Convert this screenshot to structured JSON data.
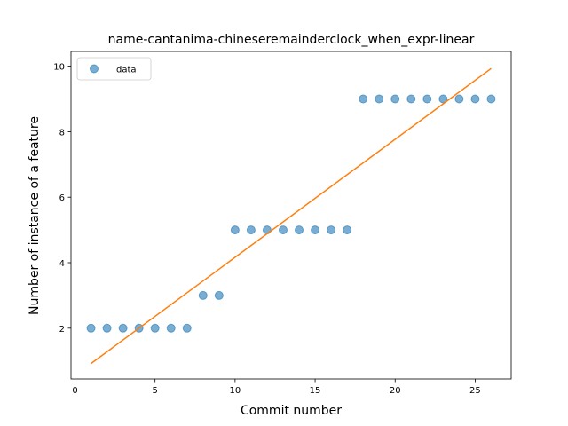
{
  "chart_data": {
    "type": "scatter",
    "title": "name-cantanima-chineseremainderclock_when_expr-linear",
    "xlabel": "Commit number",
    "ylabel": "Number of instance of a feature",
    "xlim": [
      -0.25,
      27.25
    ],
    "ylim": [
      0.45,
      10.45
    ],
    "xticks": [
      0,
      5,
      10,
      15,
      20,
      25
    ],
    "yticks": [
      2,
      4,
      6,
      8,
      10
    ],
    "grid": false,
    "legend": {
      "placement": "top-left",
      "entries": [
        "data"
      ]
    },
    "series": [
      {
        "name": "data",
        "kind": "scatter",
        "color": "#1f77b4",
        "x": [
          1,
          2,
          3,
          4,
          5,
          6,
          7,
          8,
          9,
          10,
          11,
          12,
          13,
          14,
          15,
          16,
          17,
          18,
          19,
          20,
          21,
          22,
          23,
          24,
          25,
          26
        ],
        "y": [
          2,
          2,
          2,
          2,
          2,
          2,
          2,
          3,
          3,
          5,
          5,
          5,
          5,
          5,
          5,
          5,
          5,
          9,
          9,
          9,
          9,
          9,
          9,
          9,
          9,
          9
        ]
      },
      {
        "kind": "line",
        "color": "#ff7f0e",
        "x": [
          1,
          26
        ],
        "y": [
          0.92,
          9.93
        ]
      }
    ]
  }
}
